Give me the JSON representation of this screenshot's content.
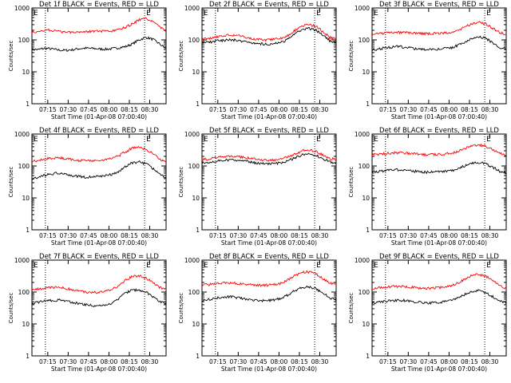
{
  "colors": {
    "events": "#000000",
    "lld": "#ff0000",
    "axis": "#000000",
    "background": "#ffffff"
  },
  "chart_data": [
    {
      "type": "line",
      "title": "Det 1f BLACK = Events, RED = LLD",
      "xlabel": "Start Time (01-Apr-08 07:00:40)",
      "ylabel": "Counts/sec",
      "yscale": "log",
      "ylim": [
        1,
        1000
      ],
      "x_ticks": [
        "07:15",
        "07:30",
        "07:45",
        "08:00",
        "08:15",
        "08:30"
      ],
      "y_ticks": [
        "1",
        "10",
        "100",
        "1000"
      ],
      "markers": [
        "E",
        "E"
      ],
      "x": [
        0,
        5,
        10,
        15,
        20,
        25,
        30,
        35,
        40,
        45,
        50,
        55,
        60,
        65,
        70,
        75,
        80,
        85,
        90,
        95,
        100
      ],
      "series": [
        {
          "name": "Events",
          "values": [
            50,
            50,
            55,
            52,
            48,
            47,
            49,
            53,
            55,
            54,
            52,
            51,
            53,
            57,
            62,
            75,
            100,
            120,
            105,
            75,
            52
          ]
        },
        {
          "name": "LLD",
          "values": [
            170,
            175,
            210,
            200,
            180,
            175,
            178,
            180,
            185,
            188,
            186,
            184,
            188,
            210,
            250,
            320,
            430,
            460,
            390,
            260,
            180
          ]
        }
      ],
      "vlines": [
        10,
        84
      ]
    },
    {
      "type": "line",
      "title": "Det 2f BLACK = Events, RED = LLD",
      "xlabel": "Start Time (01-Apr-08 07:00:40)",
      "ylabel": "Counts/sec",
      "yscale": "log",
      "ylim": [
        1,
        1000
      ],
      "x_ticks": [
        "07:15",
        "07:30",
        "07:45",
        "08:00",
        "08:15",
        "08:30"
      ],
      "y_ticks": [
        "1",
        "10",
        "100",
        "1000"
      ],
      "markers": [
        "E",
        "E"
      ],
      "x": [
        0,
        5,
        10,
        15,
        20,
        25,
        30,
        35,
        40,
        45,
        50,
        55,
        60,
        65,
        70,
        75,
        80,
        85,
        90,
        95,
        100
      ],
      "series": [
        {
          "name": "Events",
          "values": [
            80,
            85,
            92,
            97,
            100,
            98,
            92,
            85,
            78,
            75,
            74,
            77,
            85,
            110,
            160,
            215,
            230,
            200,
            140,
            95,
            80
          ]
        },
        {
          "name": "LLD",
          "values": [
            105,
            110,
            125,
            135,
            140,
            140,
            128,
            115,
            105,
            100,
            100,
            105,
            115,
            145,
            205,
            280,
            300,
            265,
            185,
            120,
            105
          ]
        }
      ],
      "vlines": [
        10,
        84
      ]
    },
    {
      "type": "line",
      "title": "Det 3f BLACK = Events, RED = LLD",
      "xlabel": "Start Time (01-Apr-08 07:00:40)",
      "ylabel": "Counts/sec",
      "yscale": "log",
      "ylim": [
        1,
        1000
      ],
      "x_ticks": [
        "07:15",
        "07:30",
        "07:45",
        "08:00",
        "08:15",
        "08:30"
      ],
      "y_ticks": [
        "1",
        "10",
        "100",
        "1000"
      ],
      "markers": [
        "E",
        "E"
      ],
      "x": [
        0,
        5,
        10,
        15,
        20,
        25,
        30,
        35,
        40,
        45,
        50,
        55,
        60,
        65,
        70,
        75,
        80,
        85,
        90,
        95,
        100
      ],
      "series": [
        {
          "name": "Events",
          "values": [
            50,
            52,
            57,
            60,
            62,
            58,
            55,
            52,
            50,
            51,
            52,
            54,
            58,
            70,
            90,
            115,
            125,
            110,
            80,
            58,
            50
          ]
        },
        {
          "name": "LLD",
          "values": [
            150,
            155,
            165,
            170,
            172,
            170,
            165,
            160,
            158,
            160,
            163,
            168,
            178,
            205,
            260,
            330,
            350,
            310,
            230,
            170,
            150
          ]
        }
      ],
      "vlines": [
        10,
        84
      ]
    },
    {
      "type": "line",
      "title": "Det 4f BLACK = Events, RED = LLD",
      "xlabel": "Start Time (01-Apr-08 07:00:40)",
      "ylabel": "Counts/sec",
      "yscale": "log",
      "ylim": [
        1,
        1000
      ],
      "x_ticks": [
        "07:15",
        "07:30",
        "07:45",
        "08:00",
        "08:15",
        "08:30"
      ],
      "y_ticks": [
        "1",
        "10",
        "100",
        "1000"
      ],
      "markers": [
        "E",
        "E"
      ],
      "x": [
        0,
        5,
        10,
        15,
        20,
        25,
        30,
        35,
        40,
        45,
        50,
        55,
        60,
        65,
        70,
        75,
        80,
        85,
        90,
        95,
        100
      ],
      "series": [
        {
          "name": "Events",
          "values": [
            40,
            45,
            52,
            57,
            60,
            55,
            50,
            47,
            45,
            45,
            47,
            50,
            55,
            68,
            95,
            125,
            135,
            115,
            85,
            58,
            42
          ]
        },
        {
          "name": "LLD",
          "values": [
            140,
            150,
            165,
            175,
            180,
            170,
            160,
            150,
            145,
            146,
            150,
            158,
            172,
            210,
            280,
            360,
            380,
            330,
            240,
            165,
            140
          ]
        }
      ],
      "vlines": [
        10,
        84
      ]
    },
    {
      "type": "line",
      "title": "Det 5f BLACK = Events, RED = LLD",
      "xlabel": "Start Time (01-Apr-08 07:00:40)",
      "ylabel": "Counts/sec",
      "yscale": "log",
      "ylim": [
        1,
        1000
      ],
      "x_ticks": [
        "07:15",
        "07:30",
        "07:45",
        "08:00",
        "08:15",
        "08:30"
      ],
      "y_ticks": [
        "1",
        "10",
        "100",
        "1000"
      ],
      "markers": [
        "E",
        "E"
      ],
      "x": [
        0,
        5,
        10,
        15,
        20,
        25,
        30,
        35,
        40,
        45,
        50,
        55,
        60,
        65,
        70,
        75,
        80,
        85,
        90,
        95,
        100
      ],
      "series": [
        {
          "name": "Events",
          "values": [
            125,
            130,
            142,
            150,
            155,
            152,
            145,
            135,
            125,
            118,
            115,
            118,
            128,
            150,
            185,
            225,
            240,
            215,
            170,
            135,
            125
          ]
        },
        {
          "name": "LLD",
          "values": [
            160,
            165,
            180,
            195,
            200,
            198,
            188,
            175,
            163,
            155,
            150,
            155,
            168,
            195,
            240,
            300,
            320,
            285,
            220,
            175,
            160
          ]
        }
      ],
      "vlines": [
        10,
        84
      ]
    },
    {
      "type": "line",
      "title": "Det 6f BLACK = Events, RED = LLD",
      "xlabel": "Start Time (01-Apr-08 07:00:40)",
      "ylabel": "Counts/sec",
      "yscale": "log",
      "ylim": [
        1,
        1000
      ],
      "x_ticks": [
        "07:15",
        "07:30",
        "07:45",
        "08:00",
        "08:15",
        "08:30"
      ],
      "y_ticks": [
        "1",
        "10",
        "100",
        "1000"
      ],
      "markers": [
        "E",
        "E"
      ],
      "x": [
        0,
        5,
        10,
        15,
        20,
        25,
        30,
        35,
        40,
        45,
        50,
        55,
        60,
        65,
        70,
        75,
        80,
        85,
        90,
        95,
        100
      ],
      "series": [
        {
          "name": "Events",
          "values": [
            65,
            68,
            72,
            75,
            77,
            74,
            70,
            66,
            64,
            64,
            66,
            68,
            73,
            85,
            105,
            125,
            130,
            115,
            90,
            70,
            60
          ]
        },
        {
          "name": "LLD",
          "values": [
            230,
            235,
            245,
            255,
            260,
            255,
            245,
            235,
            228,
            228,
            232,
            240,
            255,
            295,
            365,
            440,
            460,
            410,
            320,
            245,
            230
          ]
        }
      ],
      "vlines": [
        10,
        84
      ]
    },
    {
      "type": "line",
      "title": "Det 7f BLACK = Events, RED = LLD",
      "xlabel": "Start Time (01-Apr-08 07:00:40)",
      "ylabel": "Counts/sec",
      "yscale": "log",
      "ylim": [
        1,
        1000
      ],
      "x_ticks": [
        "07:15",
        "07:30",
        "07:45",
        "08:00",
        "08:15",
        "08:30"
      ],
      "y_ticks": [
        "1",
        "10",
        "100",
        "1000"
      ],
      "markers": [
        "E",
        "E"
      ],
      "x": [
        0,
        5,
        10,
        15,
        20,
        25,
        30,
        35,
        40,
        45,
        50,
        55,
        60,
        65,
        70,
        75,
        80,
        85,
        90,
        95,
        100
      ],
      "series": [
        {
          "name": "Events",
          "values": [
            45,
            48,
            52,
            55,
            56,
            53,
            48,
            44,
            40,
            38,
            37,
            39,
            45,
            65,
            95,
            115,
            118,
            100,
            72,
            52,
            45
          ]
        },
        {
          "name": "LLD",
          "values": [
            120,
            125,
            135,
            140,
            140,
            130,
            120,
            110,
            100,
            97,
            98,
            105,
            120,
            165,
            240,
            310,
            320,
            275,
            195,
            140,
            120
          ]
        }
      ],
      "vlines": [
        10,
        84
      ]
    },
    {
      "type": "line",
      "title": "Det 8f BLACK = Events, RED = LLD",
      "xlabel": "Start Time (01-Apr-08 07:00:40)",
      "ylabel": "Counts/sec",
      "yscale": "log",
      "ylim": [
        1,
        1000
      ],
      "x_ticks": [
        "07:15",
        "07:30",
        "07:45",
        "08:00",
        "08:15",
        "08:30"
      ],
      "y_ticks": [
        "1",
        "10",
        "100",
        "1000"
      ],
      "markers": [
        "E",
        "E"
      ],
      "x": [
        0,
        5,
        10,
        15,
        20,
        25,
        30,
        35,
        40,
        45,
        50,
        55,
        60,
        65,
        70,
        75,
        80,
        85,
        90,
        95,
        100
      ],
      "series": [
        {
          "name": "Events",
          "values": [
            55,
            58,
            65,
            70,
            72,
            68,
            63,
            58,
            55,
            54,
            55,
            58,
            65,
            85,
            115,
            140,
            145,
            125,
            92,
            68,
            55
          ]
        },
        {
          "name": "LLD",
          "values": [
            165,
            170,
            180,
            190,
            195,
            188,
            178,
            170,
            165,
            165,
            168,
            175,
            195,
            250,
            340,
            420,
            430,
            370,
            270,
            195,
            165
          ]
        }
      ],
      "vlines": [
        10,
        84
      ]
    },
    {
      "type": "line",
      "title": "Det 9f BLACK = Events, RED = LLD",
      "xlabel": "Start Time (01-Apr-08 07:00:40)",
      "ylabel": "Counts/sec",
      "yscale": "log",
      "ylim": [
        1,
        1000
      ],
      "x_ticks": [
        "07:15",
        "07:30",
        "07:45",
        "08:00",
        "08:15",
        "08:30"
      ],
      "y_ticks": [
        "1",
        "10",
        "100",
        "1000"
      ],
      "markers": [
        "E",
        "E"
      ],
      "x": [
        0,
        5,
        10,
        15,
        20,
        25,
        30,
        35,
        40,
        45,
        50,
        55,
        60,
        65,
        70,
        75,
        80,
        85,
        90,
        95,
        100
      ],
      "series": [
        {
          "name": "Events",
          "values": [
            45,
            48,
            52,
            55,
            56,
            54,
            50,
            48,
            46,
            46,
            48,
            50,
            55,
            68,
            88,
            108,
            112,
            95,
            72,
            52,
            45
          ]
        },
        {
          "name": "LLD",
          "values": [
            130,
            135,
            145,
            150,
            152,
            148,
            140,
            135,
            132,
            133,
            137,
            145,
            160,
            200,
            270,
            350,
            360,
            310,
            225,
            160,
            130
          ]
        }
      ],
      "vlines": [
        10,
        84
      ]
    }
  ]
}
